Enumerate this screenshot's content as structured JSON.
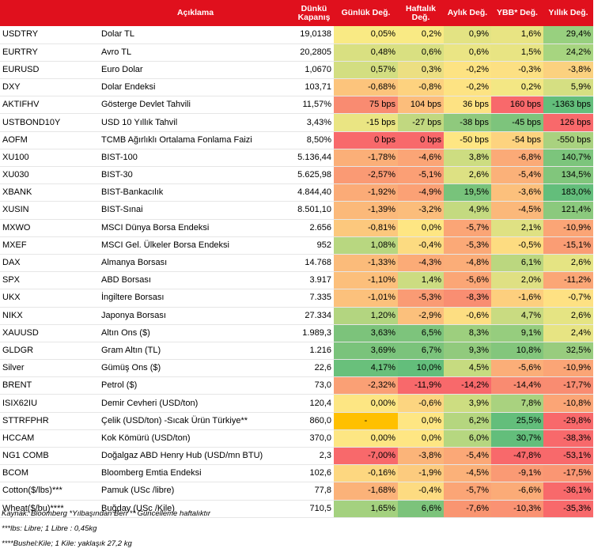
{
  "headers": [
    "",
    "Açıklama",
    "Dünkü Kapanış",
    "Günlük Değ.",
    "Haftalık Değ.",
    "Aylık Değ.",
    "YBB* Değ.",
    "Yıllık Değ."
  ],
  "rows": [
    {
      "code": "USDTRY",
      "desc": "Dolar TL",
      "close": "19,0138",
      "d": "0,05%",
      "w": "0,2%",
      "m": "0,9%",
      "y": "1,6%",
      "yy": "29,4%",
      "cd": "#f9ea84",
      "cw": "#f9ea84",
      "cm": "#e3e383",
      "cy": "#e8e483",
      "cyy": "#98d07f"
    },
    {
      "code": "EURTRY",
      "desc": "Avro TL",
      "close": "20,2805",
      "d": "0,48%",
      "w": "0,6%",
      "m": "0,6%",
      "y": "1,5%",
      "yy": "24,2%",
      "cd": "#d9e081",
      "cw": "#d9e081",
      "cm": "#eae584",
      "cy": "#e8e483",
      "cyy": "#a7d580"
    },
    {
      "code": "EURUSD",
      "desc": "Euro Dolar",
      "close": "1,0670",
      "d": "0,57%",
      "w": "0,3%",
      "m": "-0,2%",
      "y": "-0,3%",
      "yy": "-3,8%",
      "cd": "#d3de81",
      "cw": "#ecdf82",
      "cm": "#fde383",
      "cy": "#fce083",
      "cyy": "#fbd17f"
    },
    {
      "code": "DXY",
      "desc": "Dolar Endeksi",
      "close": "103,71",
      "d": "-0,68%",
      "w": "-0,8%",
      "m": "-0,2%",
      "y": "0,2%",
      "yy": "5,9%",
      "cd": "#fcc47c",
      "cw": "#fdd27f",
      "cm": "#fde383",
      "cy": "#f3e784",
      "cyy": "#d5df82"
    },
    {
      "code": "AKTIFHV",
      "desc": "Gösterge Devlet Tahvili",
      "close": "11,57%",
      "d": "75 bps",
      "w": "104 bps",
      "m": "36 bps",
      "y": "160 bps",
      "yy": "-1363 bps",
      "cd": "#f98b71",
      "cw": "#fcbd7b",
      "cm": "#fde283",
      "cy": "#f8696b",
      "cyy": "#63be7b"
    },
    {
      "code": "USTBOND10Y",
      "desc": "USD 10 Yıllık Tahvil",
      "close": "3,43%",
      "d": "-15 bps",
      "w": "-27 bps",
      "m": "-38 bps",
      "y": "-45 bps",
      "yy": "126 bps",
      "cd": "#eae583",
      "cw": "#c1d880",
      "cm": "#8fc97d",
      "cy": "#7dc47c",
      "cyy": "#f8696b"
    },
    {
      "code": "AOFM",
      "desc": "TCMB Ağırlıklı Ortalama Fonlama Faizi",
      "close": "8,50%",
      "d": "0 bps",
      "w": "0 bps",
      "m": "-50 bps",
      "y": "-54 bps",
      "yy": "-550 bps",
      "cd": "#f8696b",
      "cw": "#f8696b",
      "cm": "#fee683",
      "cy": "#fdd37f",
      "cyy": "#a9d27f"
    },
    {
      "code": "XU100",
      "desc": "BIST-100",
      "close": "5.136,44",
      "d": "-1,78%",
      "w": "-4,6%",
      "m": "3,8%",
      "y": "-6,8%",
      "yy": "140,7%",
      "cd": "#fbaf78",
      "cw": "#fba576",
      "cm": "#cddd81",
      "cy": "#fbaa77",
      "cyy": "#7cc57c"
    },
    {
      "code": "XU030",
      "desc": "BIST-30",
      "close": "5.625,98",
      "d": "-2,57%",
      "w": "-5,1%",
      "m": "2,6%",
      "y": "-5,4%",
      "yy": "134,5%",
      "cd": "#fa9a74",
      "cw": "#fb9f75",
      "cm": "#dde183",
      "cy": "#fbb179",
      "cyy": "#81c67c"
    },
    {
      "code": "XBANK",
      "desc": "BIST-Bankacılık",
      "close": "4.844,40",
      "d": "-1,92%",
      "w": "-4,9%",
      "m": "19,5%",
      "y": "-3,6%",
      "yy": "183,0%",
      "cd": "#fbab77",
      "cw": "#fba175",
      "cm": "#78c37b",
      "cy": "#fcc07c",
      "cyy": "#63be7b"
    },
    {
      "code": "XUSIN",
      "desc": "BIST-Sınai",
      "close": "8.501,10",
      "d": "-1,39%",
      "w": "-3,2%",
      "m": "4,9%",
      "y": "-4,5%",
      "yy": "121,4%",
      "cd": "#fbb97a",
      "cw": "#fbbd7b",
      "cm": "#c4da80",
      "cy": "#fbb87a",
      "cyy": "#8bc97d"
    },
    {
      "code": "MXWO",
      "desc": "MSCI Dünya Borsa Endeksi",
      "close": "2.656",
      "d": "-0,81%",
      "w": "0,0%",
      "m": "-5,7%",
      "y": "2,1%",
      "yy": "-10,9%",
      "cd": "#fcc87d",
      "cw": "#fee683",
      "cm": "#fba576",
      "cy": "#dfe183",
      "cyy": "#fba576"
    },
    {
      "code": "MXEF",
      "desc": "MSCI Gel. Ülkeler Borsa Endeksi",
      "close": "952",
      "d": "1,08%",
      "w": "-0,4%",
      "m": "-5,3%",
      "y": "-0,5%",
      "yy": "-15,1%",
      "cd": "#b8d780",
      "cw": "#fcdb81",
      "cm": "#fba977",
      "cy": "#fddc81",
      "cyy": "#fa9d74"
    },
    {
      "code": "DAX",
      "desc": "Almanya Borsası",
      "close": "14.768",
      "d": "-1,33%",
      "w": "-4,3%",
      "m": "-4,8%",
      "y": "6,1%",
      "yy": "2,6%",
      "cd": "#fbbb7a",
      "cw": "#fbab77",
      "cm": "#fbad78",
      "cy": "#bbd77f",
      "cyy": "#e5e483"
    },
    {
      "code": "SPX",
      "desc": "ABD Borsası",
      "close": "3.917",
      "d": "-1,10%",
      "w": "1,4%",
      "m": "-5,6%",
      "y": "2,0%",
      "yy": "-11,2%",
      "cd": "#fcbf7b",
      "cw": "#ccdc81",
      "cm": "#fba676",
      "cy": "#dfe083",
      "cyy": "#fba676"
    },
    {
      "code": "UKX",
      "desc": "İngiltere Borsası",
      "close": "7.335",
      "d": "-1,01%",
      "w": "-5,3%",
      "m": "-8,3%",
      "y": "-1,6%",
      "yy": "-0,7%",
      "cd": "#fcc17c",
      "cw": "#fa9b74",
      "cm": "#f98e72",
      "cy": "#fdcf7e",
      "cyy": "#fee183"
    },
    {
      "code": "NIKX",
      "desc": "Japonya Borsası",
      "close": "27.334",
      "d": "1,20%",
      "w": "-2,9%",
      "m": "-0,6%",
      "y": "4,7%",
      "yy": "2,6%",
      "cd": "#b3d580",
      "cw": "#fbc07c",
      "cm": "#fdde82",
      "cy": "#c9db81",
      "cyy": "#e5e483"
    },
    {
      "code": "XAUUSD",
      "desc": "Altın Ons ($)",
      "close": "1.989,3",
      "d": "3,63%",
      "w": "6,5%",
      "m": "8,3%",
      "y": "9,1%",
      "yy": "2,4%",
      "cd": "#7cc37b",
      "cw": "#7dc47c",
      "cm": "#9dcf7e",
      "cy": "#96cd7e",
      "cyy": "#e7e483"
    },
    {
      "code": "GLDGR",
      "desc": "Gram Altın (TL)",
      "close": "1.216",
      "d": "3,69%",
      "w": "6,7%",
      "m": "9,3%",
      "y": "10,8%",
      "yy": "32,5%",
      "cd": "#7ac37b",
      "cw": "#7bc37b",
      "cm": "#91ca7d",
      "cy": "#83c67c",
      "cyy": "#98cc7e"
    },
    {
      "code": "Silver",
      "desc": "Gümüş Ons ($)",
      "close": "22,6",
      "d": "4,17%",
      "w": "10,0%",
      "m": "4,5%",
      "y": "-5,6%",
      "yy": "-10,9%",
      "cd": "#69c07b",
      "cw": "#63be7b",
      "cm": "#c6db80",
      "cy": "#fbae78",
      "cyy": "#fba576"
    },
    {
      "code": "BRENT",
      "desc": "Petrol ($)",
      "close": "73,0",
      "d": "-2,32%",
      "w": "-11,9%",
      "m": "-14,2%",
      "y": "-14,4%",
      "yy": "-17,7%",
      "cd": "#faa075",
      "cw": "#f8696b",
      "cm": "#f8696b",
      "cy": "#f98b71",
      "cyy": "#f98c71"
    },
    {
      "code": "ISIX62IU",
      "desc": "Demir Cevheri (USD/ton)",
      "close": "120,4",
      "d": "0,00%",
      "w": "-0,6%",
      "m": "3,9%",
      "y": "7,8%",
      "yy": "-10,8%",
      "cd": "#fde683",
      "cw": "#fcd580",
      "cm": "#cddd81",
      "cy": "#a9d27f",
      "cyy": "#fba576"
    },
    {
      "code": "STTRFPHR",
      "desc": "Çelik (USD/ton) -Sıcak Ürün Türkiye**",
      "close": "860,0",
      "d": "-",
      "w": "0,0%",
      "m": "6,2%",
      "y": "25,5%",
      "yy": "-29,8%",
      "cd": "#ffc000",
      "cw": "#fee683",
      "cm": "#b5d67f",
      "cy": "#63be7b",
      "cyy": "#f8696b"
    },
    {
      "code": "HCCAM",
      "desc": "Kok Kömürü (USD/ton)",
      "close": "370,0",
      "d": "0,00%",
      "w": "0,0%",
      "m": "6,0%",
      "y": "30,7%",
      "yy": "-38,3%",
      "cd": "#fde683",
      "cw": "#fee683",
      "cm": "#b6d780",
      "cy": "#63be7b",
      "cyy": "#f8696b"
    },
    {
      "code": "NG1 COMB",
      "desc": "Doğalgaz ABD Henry Hub (USD/mn BTU)",
      "close": "2,3",
      "d": "-7,00%",
      "w": "-3,8%",
      "m": "-5,4%",
      "y": "-47,8%",
      "yy": "-53,1%",
      "cd": "#f8696b",
      "cw": "#fbb479",
      "cm": "#fba877",
      "cy": "#f8696b",
      "cyy": "#f8696b"
    },
    {
      "code": "BCOM",
      "desc": "Bloomberg Emtia Endeksi",
      "close": "102,6",
      "d": "-0,16%",
      "w": "-1,9%",
      "m": "-4,5%",
      "y": "-9,1%",
      "yy": "-17,5%",
      "cd": "#fdd780",
      "cw": "#fccb7e",
      "cm": "#fbb179",
      "cy": "#fa9a74",
      "cyy": "#fa9673"
    },
    {
      "code": "Cotton($/lbs)***",
      "desc": "Pamuk (USc /libre)",
      "close": "77,8",
      "d": "-1,68%",
      "w": "-0,4%",
      "m": "-5,7%",
      "y": "-6,6%",
      "yy": "-36,1%",
      "cd": "#fbb279",
      "cw": "#fddb81",
      "cm": "#fba576",
      "cy": "#fbab77",
      "cyy": "#f8696b"
    },
    {
      "code": "Wheat($/bu)****",
      "desc": "Buğday (USc /Kile)",
      "close": "710,5",
      "d": "1,65%",
      "w": "6,6%",
      "m": "-7,6%",
      "y": "-10,3%",
      "yy": "-35,3%",
      "cd": "#a4d17f",
      "cw": "#7cc37b",
      "cm": "#f99571",
      "cy": "#fa9273",
      "cyy": "#f8696b"
    }
  ],
  "footnotes": [
    "Kaynak: Bloomberg *Yılbaşından Beri  ** Güncelleme haftalıktır",
    "***lbs: Libre; 1 Libre : 0,45kg",
    "****Bushel:Kile; 1 Kile: yaklaşık 27,2 kg"
  ],
  "colors": {
    "header_bg": "#e0101d",
    "header_text": "#ffffff"
  }
}
